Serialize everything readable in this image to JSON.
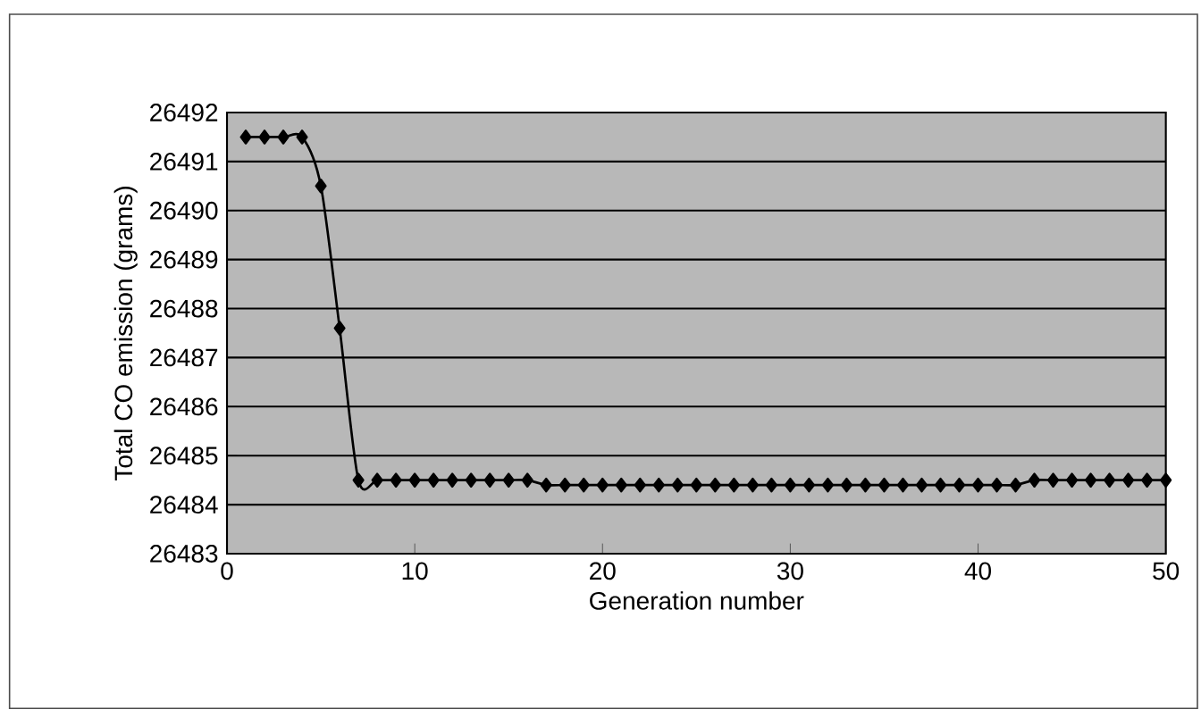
{
  "chart_data": {
    "type": "line",
    "xlabel": "Generation number",
    "ylabel": "Total CO emission (grams)",
    "x": [
      1,
      2,
      3,
      4,
      5,
      6,
      7,
      8,
      9,
      10,
      11,
      12,
      13,
      14,
      15,
      16,
      17,
      18,
      19,
      20,
      21,
      22,
      23,
      24,
      25,
      26,
      27,
      28,
      29,
      30,
      31,
      32,
      33,
      34,
      35,
      36,
      37,
      38,
      39,
      40,
      41,
      42,
      43,
      44,
      45,
      46,
      47,
      48,
      49,
      50
    ],
    "series": [
      {
        "color": "#000000",
        "values": [
          26491.5,
          26491.5,
          26491.5,
          26491.5,
          26490.5,
          26487.6,
          26484.5,
          26484.5,
          26484.5,
          26484.5,
          26484.5,
          26484.5,
          26484.5,
          26484.5,
          26484.5,
          26484.5,
          26484.4,
          26484.4,
          26484.4,
          26484.4,
          26484.4,
          26484.4,
          26484.4,
          26484.4,
          26484.4,
          26484.4,
          26484.4,
          26484.4,
          26484.4,
          26484.4,
          26484.4,
          26484.4,
          26484.4,
          26484.4,
          26484.4,
          26484.4,
          26484.4,
          26484.4,
          26484.4,
          26484.4,
          26484.4,
          26484.4,
          26484.5,
          26484.5,
          26484.5,
          26484.5,
          26484.5,
          26484.5,
          26484.5,
          26484.5
        ]
      }
    ],
    "xlim": [
      0,
      50
    ],
    "xticks": [
      0,
      10,
      20,
      30,
      40,
      50
    ],
    "ylim": [
      26483,
      26492
    ],
    "yticks": [
      26483,
      26484,
      26485,
      26486,
      26487,
      26488,
      26489,
      26490,
      26491,
      26492
    ],
    "grid": "y",
    "marker": "diamond",
    "line_style": "solid"
  }
}
